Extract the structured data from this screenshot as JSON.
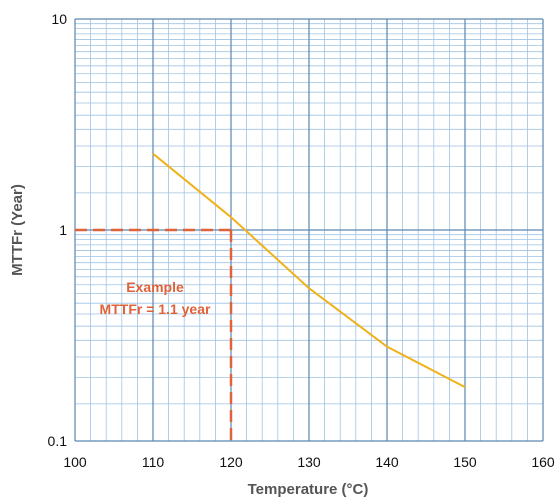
{
  "chart_data": {
    "type": "line",
    "xlabel": "Temperature (°C)",
    "ylabel": "MTTFr (Year)",
    "xlim": [
      100,
      160
    ],
    "ylim": [
      0.1,
      10
    ],
    "yscale": "log",
    "x_ticks": [
      100,
      110,
      120,
      130,
      140,
      150,
      160
    ],
    "x_tick_labels": [
      "100",
      "110",
      "120",
      "130",
      "140",
      "150",
      "160"
    ],
    "y_ticks": [
      0.1,
      1,
      10
    ],
    "y_tick_labels": [
      "0.1",
      "1",
      "10"
    ],
    "grid": true,
    "series": [
      {
        "x": [
          110,
          120,
          130,
          140,
          150
        ],
        "y": [
          2.3,
          1.15,
          0.53,
          0.28,
          0.18
        ],
        "color": "#f0b21a"
      }
    ],
    "annotation": {
      "line1": "Example",
      "line2": "MTTFr = 1.1 year",
      "x": 120,
      "y": 1,
      "color": "#e0623a"
    },
    "colors": {
      "major_grid": "#5b86b0",
      "minor_grid": "#9fc3e3",
      "curve": "#f0b21a",
      "annotation": "#e0623a"
    }
  }
}
